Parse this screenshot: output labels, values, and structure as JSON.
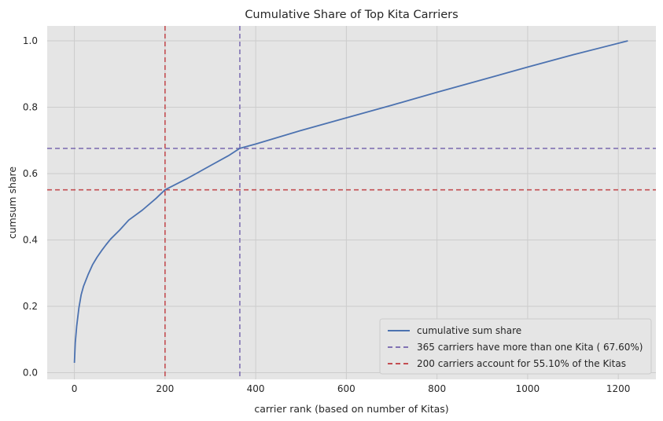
{
  "chart_data": {
    "type": "line",
    "title": "Cumulative Share of Top Kita Carriers",
    "xlabel": "carrier rank (based on number of Kitas)",
    "ylabel": "cumsum share",
    "xlim": [
      -60,
      1283
    ],
    "ylim": [
      -0.02,
      1.045
    ],
    "xticks": [
      0,
      200,
      400,
      600,
      800,
      1000,
      1200
    ],
    "xtick_labels": [
      "0",
      "200",
      "400",
      "600",
      "800",
      "1000",
      "1200"
    ],
    "yticks": [
      0.0,
      0.2,
      0.4,
      0.6,
      0.8,
      1.0
    ],
    "ytick_labels": [
      "0.0",
      "0.2",
      "0.4",
      "0.6",
      "0.8",
      "1.0"
    ],
    "grid": true,
    "legend_position": "bottom-right",
    "series": [
      {
        "name": "cumulative sum share",
        "color": "#4c72b0",
        "x": [
          0,
          2,
          5,
          10,
          15,
          20,
          30,
          40,
          50,
          60,
          70,
          80,
          100,
          120,
          150,
          180,
          200,
          250,
          300,
          340,
          365,
          400,
          500,
          600,
          700,
          800,
          900,
          1000,
          1100,
          1221
        ],
        "y": [
          0.03,
          0.09,
          0.14,
          0.195,
          0.235,
          0.26,
          0.295,
          0.325,
          0.348,
          0.368,
          0.386,
          0.403,
          0.43,
          0.46,
          0.49,
          0.525,
          0.551,
          0.586,
          0.624,
          0.654,
          0.676,
          0.689,
          0.73,
          0.768,
          0.806,
          0.845,
          0.883,
          0.921,
          0.958,
          1.0
        ]
      }
    ],
    "reference_lines": [
      {
        "orientation": "both",
        "x": 365,
        "y": 0.676,
        "color": "#8172b3",
        "label": "365 carriers have more than one Kita ( 67.60%)"
      },
      {
        "orientation": "both",
        "x": 200,
        "y": 0.551,
        "color": "#c44e52",
        "label": "200 carriers account for  55.10% of the Kitas"
      }
    ]
  }
}
